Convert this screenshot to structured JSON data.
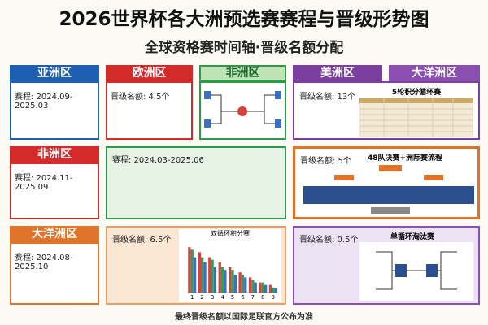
{
  "header": {
    "title": "2026世界杯各大洲预选赛赛程与晋级形势图",
    "subtitle": "全球资格赛时间轴·晋级名额分配"
  },
  "row1": {
    "headers": [
      "亚洲区",
      "欧洲区",
      "非洲区",
      "美洲区",
      "大洋洲区"
    ],
    "asia": "赛程: 2024.09-2025.03",
    "europe": "晋级名额: 4.5个",
    "americas": "晋级名额: 13个",
    "americas_chart": "5轮积分循环赛"
  },
  "row2": {
    "header": "非洲区",
    "left": "赛程: 2024.11-2025.09",
    "middle": "赛程: 2024.03-2025.06",
    "right": "晋级名额: 5个",
    "right_chart": "48队决赛+洲际赛流程"
  },
  "row3": {
    "header": "大洋洲区",
    "left": "赛程: 2024.08-2025.10",
    "middle": "晋级名额: 6.5个",
    "right": "晋级名额: 0.5个",
    "right_chart": "单循环淘汰赛"
  },
  "chart_data": {
    "type": "bar",
    "title": "双循环积分赛",
    "categories": [
      "1",
      "2",
      "3",
      "4",
      "5",
      "6",
      "7",
      "8",
      "9"
    ],
    "series": [
      {
        "color": "#d8403a",
        "values": [
          9,
          8,
          7,
          6,
          5,
          4,
          3,
          2,
          1.5
        ]
      },
      {
        "color": "#3a9a5a",
        "values": [
          8.5,
          7,
          6.5,
          5,
          4.5,
          3.5,
          2.5,
          2,
          1
        ]
      },
      {
        "color": "#3b6fc4",
        "values": [
          7,
          6,
          5,
          4.5,
          3.5,
          3,
          2,
          1.5,
          0.8
        ]
      }
    ],
    "ylim": [
      0,
      10
    ]
  },
  "footer": "最终晋级名额以国际足联官方公布为准"
}
